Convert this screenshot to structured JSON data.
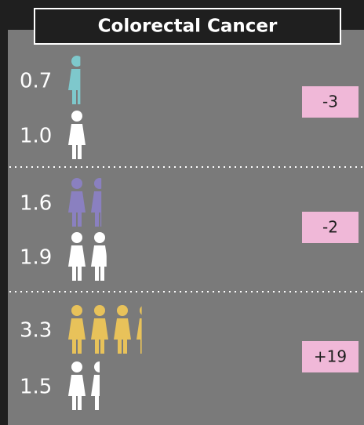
{
  "chart_data": {
    "type": "pictograph",
    "title": "Colorectal Cancer",
    "groups": [
      {
        "series": [
          {
            "color": "#7ec8cc",
            "values": [
              0.7
            ],
            "value_labels": [
              "0.7"
            ]
          },
          {
            "color": "#ffffff",
            "values": [
              1.0
            ],
            "value_labels": [
              "1.0"
            ]
          }
        ],
        "badge": "-3"
      },
      {
        "series": [
          {
            "color": "#8a80c0",
            "values": [
              1.6
            ],
            "value_labels": [
              "1.6"
            ]
          },
          {
            "color": "#ffffff",
            "values": [
              1.9
            ],
            "value_labels": [
              "1.9"
            ]
          }
        ],
        "badge": "-2"
      },
      {
        "series": [
          {
            "color": "#e8c25a",
            "values": [
              3.3
            ],
            "value_labels": [
              "3.3"
            ]
          },
          {
            "color": "#ffffff",
            "values": [
              1.5
            ],
            "value_labels": [
              "1.5"
            ]
          }
        ],
        "badge": "+19"
      }
    ]
  }
}
